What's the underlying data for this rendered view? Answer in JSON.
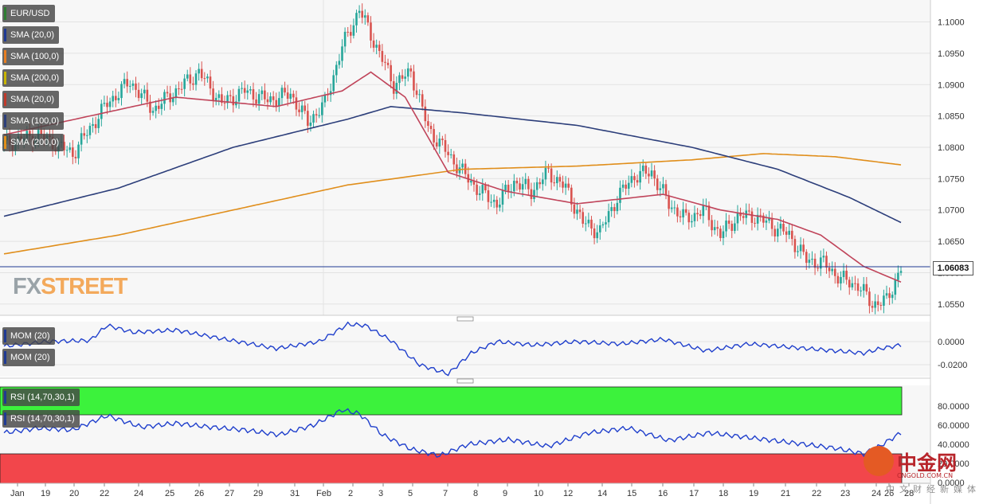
{
  "instrument": "EUR/USD",
  "current_price_label": "1.06083",
  "brand": {
    "fx": "FX",
    "street": "STREET"
  },
  "watermark": {
    "name": "中金网",
    "url": "CNGOLD.COM.CN",
    "subtitle": "中文财经新媒体"
  },
  "legend": {
    "price_panel": [
      {
        "label": "EUR/USD",
        "color": "#2e7d32"
      },
      {
        "label": "SMA (20,0)",
        "color": "#1f3a93"
      },
      {
        "label": "SMA (100,0)",
        "color": "#e67e22"
      },
      {
        "label": "SMA (200,0)",
        "color": "#c8b400"
      },
      {
        "label": "SMA (20,0)",
        "color": "#c0392b"
      },
      {
        "label": "SMA (100,0)",
        "color": "#2c3e7a"
      },
      {
        "label": "SMA (200,0)",
        "color": "#e08e1b"
      }
    ],
    "mom_panel": [
      {
        "label": "MOM (20)",
        "color": "#1f3a93"
      },
      {
        "label": "MOM (20)",
        "color": "#1f3a93"
      }
    ],
    "rsi_panel": [
      {
        "label": "RSI (14,70,30,1)",
        "color": "#1f3a93"
      },
      {
        "label": "RSI (14,70,30,1)",
        "color": "#1f3a93"
      }
    ]
  },
  "chart_data": [
    {
      "type": "candlestick",
      "title": "EUR/USD",
      "y_ticks": [
        "1.1000",
        "1.0950",
        "1.0900",
        "1.0850",
        "1.0800",
        "1.0750",
        "1.0700",
        "1.0650",
        "1.0600",
        "1.0550"
      ],
      "ylim": [
        1.0532,
        1.1035
      ],
      "x_ticks": [
        "Jan",
        "19",
        "20",
        "22",
        "24",
        "25",
        "26",
        "27",
        "29",
        "31",
        "Feb",
        "2",
        "3",
        "5",
        "7",
        "8",
        "9",
        "10",
        "12",
        "14",
        "15",
        "16",
        "17",
        "18",
        "19",
        "21",
        "22",
        "23",
        "24",
        "26",
        "28"
      ],
      "current_price": 1.06083,
      "up_color": "#26a69a",
      "down_color": "#d9534f",
      "anchors": [
        [
          0,
          1.0805
        ],
        [
          12,
          1.082
        ],
        [
          24,
          1.079
        ],
        [
          36,
          1.087
        ],
        [
          44,
          1.0905
        ],
        [
          52,
          1.086
        ],
        [
          60,
          1.089
        ],
        [
          68,
          1.092
        ],
        [
          76,
          1.087
        ],
        [
          84,
          1.089
        ],
        [
          92,
          1.0875
        ],
        [
          100,
          1.0885
        ],
        [
          106,
          1.084
        ],
        [
          112,
          1.087
        ],
        [
          118,
          1.096
        ],
        [
          124,
          1.102
        ],
        [
          130,
          1.096
        ],
        [
          136,
          1.09
        ],
        [
          142,
          1.092
        ],
        [
          148,
          1.083
        ],
        [
          154,
          1.0795
        ],
        [
          160,
          1.076
        ],
        [
          166,
          1.073
        ],
        [
          172,
          1.071
        ],
        [
          178,
          1.0745
        ],
        [
          184,
          1.073
        ],
        [
          190,
          1.076
        ],
        [
          196,
          1.0735
        ],
        [
          202,
          1.068
        ],
        [
          208,
          1.0665
        ],
        [
          214,
          1.072
        ],
        [
          220,
          1.0755
        ],
        [
          226,
          1.076
        ],
        [
          232,
          1.071
        ],
        [
          238,
          1.0685
        ],
        [
          244,
          1.07
        ],
        [
          250,
          1.066
        ],
        [
          256,
          1.069
        ],
        [
          262,
          1.069
        ],
        [
          268,
          1.0675
        ],
        [
          274,
          1.066
        ],
        [
          280,
          1.062
        ],
        [
          286,
          1.0615
        ],
        [
          292,
          1.059
        ],
        [
          298,
          1.058
        ],
        [
          303,
          1.055
        ],
        [
          308,
          1.0555
        ],
        [
          313,
          1.0608
        ]
      ],
      "sma_20": [
        [
          0,
          1.082
        ],
        [
          30,
          1.085
        ],
        [
          60,
          1.088
        ],
        [
          95,
          1.0865
        ],
        [
          118,
          1.089
        ],
        [
          128,
          1.092
        ],
        [
          140,
          1.088
        ],
        [
          155,
          1.076
        ],
        [
          175,
          1.073
        ],
        [
          200,
          1.071
        ],
        [
          230,
          1.0725
        ],
        [
          250,
          1.07
        ],
        [
          270,
          1.0685
        ],
        [
          285,
          1.066
        ],
        [
          300,
          1.061
        ],
        [
          313,
          1.0585
        ]
      ],
      "sma_100": [
        [
          0,
          1.069
        ],
        [
          40,
          1.0735
        ],
        [
          80,
          1.08
        ],
        [
          120,
          1.0845
        ],
        [
          135,
          1.0865
        ],
        [
          160,
          1.0855
        ],
        [
          200,
          1.0835
        ],
        [
          240,
          1.08
        ],
        [
          270,
          1.0765
        ],
        [
          295,
          1.072
        ],
        [
          313,
          1.068
        ]
      ],
      "sma_200": [
        [
          0,
          1.063
        ],
        [
          40,
          1.066
        ],
        [
          80,
          1.07
        ],
        [
          120,
          1.074
        ],
        [
          160,
          1.0765
        ],
        [
          200,
          1.077
        ],
        [
          240,
          1.078
        ],
        [
          265,
          1.079
        ],
        [
          290,
          1.0785
        ],
        [
          313,
          1.0772
        ]
      ]
    },
    {
      "type": "line",
      "title": "MOM (20)",
      "y_ticks": [
        "0.0000",
        "-0.0200"
      ],
      "ylim": [
        -0.031,
        0.018
      ],
      "series": [
        {
          "name": "MOM (20)",
          "color": "#1f3fcc",
          "anchors": [
            [
              0,
              -0.004
            ],
            [
              15,
              0.0
            ],
            [
              30,
              0.001
            ],
            [
              36,
              0.014
            ],
            [
              45,
              0.008
            ],
            [
              60,
              0.01
            ],
            [
              75,
              0.003
            ],
            [
              95,
              -0.006
            ],
            [
              110,
              0.0
            ],
            [
              120,
              0.015
            ],
            [
              126,
              0.014
            ],
            [
              135,
              0.001
            ],
            [
              145,
              -0.02
            ],
            [
              155,
              -0.028
            ],
            [
              163,
              -0.01
            ],
            [
              172,
              0.0
            ],
            [
              185,
              -0.003
            ],
            [
              200,
              0.0
            ],
            [
              215,
              -0.002
            ],
            [
              230,
              0.002
            ],
            [
              245,
              -0.008
            ],
            [
              260,
              -0.002
            ],
            [
              275,
              -0.005
            ],
            [
              290,
              -0.008
            ],
            [
              300,
              -0.01
            ],
            [
              306,
              -0.006
            ],
            [
              313,
              -0.003
            ]
          ]
        }
      ]
    },
    {
      "type": "line",
      "title": "RSI (14,70,30,1)",
      "y_ticks": [
        "80.0000",
        "60.0000",
        "40.0000",
        "20.0000",
        "0.0000"
      ],
      "ylim": [
        0,
        100
      ],
      "overbought": 70,
      "oversold": 30,
      "series": [
        {
          "name": "RSI (14,70,30,1)",
          "color": "#1f3fcc",
          "anchors": [
            [
              0,
              52
            ],
            [
              12,
              57
            ],
            [
              24,
              55
            ],
            [
              36,
              70
            ],
            [
              48,
              58
            ],
            [
              60,
              62
            ],
            [
              72,
              58
            ],
            [
              84,
              55
            ],
            [
              96,
              50
            ],
            [
              108,
              60
            ],
            [
              118,
              76
            ],
            [
              124,
              72
            ],
            [
              132,
              50
            ],
            [
              142,
              35
            ],
            [
              152,
              28
            ],
            [
              162,
              40
            ],
            [
              176,
              45
            ],
            [
              190,
              38
            ],
            [
              204,
              52
            ],
            [
              218,
              57
            ],
            [
              232,
              44
            ],
            [
              246,
              52
            ],
            [
              260,
              47
            ],
            [
              274,
              42
            ],
            [
              290,
              36
            ],
            [
              300,
              30
            ],
            [
              305,
              37
            ],
            [
              313,
              52
            ]
          ]
        }
      ]
    }
  ]
}
